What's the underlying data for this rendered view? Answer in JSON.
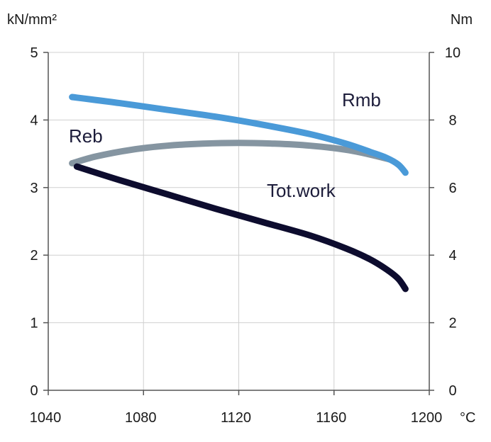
{
  "chart_data": {
    "type": "line",
    "x_unit": "°C",
    "y_left_unit": "kN/mm²",
    "y_right_unit": "Nm",
    "xlim": [
      1040,
      1200
    ],
    "ylim_left": [
      0,
      5
    ],
    "ylim_right": [
      0,
      10
    ],
    "x_ticks": [
      "1040",
      "1080",
      "1120",
      "1160",
      "1200"
    ],
    "y_left_ticks": [
      "0",
      "1",
      "2",
      "3",
      "4",
      "5"
    ],
    "y_right_ticks": [
      "0",
      "2",
      "4",
      "6",
      "8",
      "10"
    ],
    "grid": true,
    "series": [
      {
        "name": "Rmb",
        "axis": "left",
        "color": "#4a9ad8",
        "x": [
          1050,
          1070,
          1090,
          1110,
          1130,
          1150,
          1165,
          1175,
          1182,
          1187,
          1190
        ],
        "y": [
          4.34,
          4.25,
          4.15,
          4.05,
          3.93,
          3.79,
          3.65,
          3.53,
          3.44,
          3.34,
          3.22
        ]
      },
      {
        "name": "Reb",
        "axis": "left",
        "color": "#8595a1",
        "x": [
          1050,
          1060,
          1075,
          1090,
          1105,
          1120,
          1135,
          1150,
          1165,
          1175,
          1183
        ],
        "y": [
          3.36,
          3.46,
          3.56,
          3.62,
          3.65,
          3.66,
          3.65,
          3.62,
          3.56,
          3.49,
          3.42
        ]
      },
      {
        "name": "Tot.work",
        "axis": "right",
        "color": "#0d0c2e",
        "x": [
          1052,
          1070,
          1090,
          1110,
          1130,
          1150,
          1165,
          1175,
          1182,
          1187,
          1190
        ],
        "y": [
          6.62,
          6.22,
          5.8,
          5.38,
          4.98,
          4.58,
          4.2,
          3.88,
          3.58,
          3.3,
          3.0
        ]
      }
    ]
  }
}
